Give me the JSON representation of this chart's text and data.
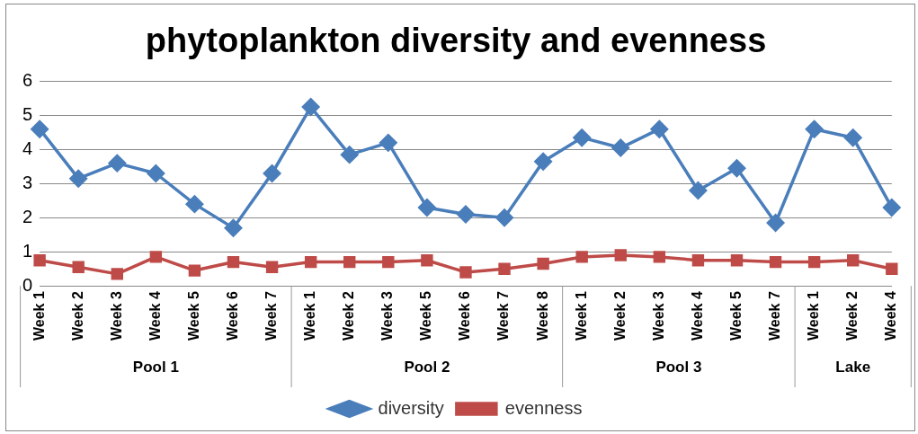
{
  "chart_data": {
    "type": "line",
    "title": "phytoplankton diversity and evenness",
    "categories": [
      "Week 1",
      "Week 2",
      "Week 3",
      "Week 4",
      "Week 5",
      "Week 6",
      "Week 7",
      "Week 1",
      "Week 2",
      "Week 3",
      "Week 5",
      "Week 6",
      "Week 7",
      "Week 8",
      "Week 1",
      "Week 2",
      "Week 3",
      "Week 4",
      "Week 5",
      "Week 7",
      "Week 1",
      "Week 2",
      "Week 4"
    ],
    "annotations": [
      "Pool 1",
      "Pool 2",
      "Pool 3",
      "Lake"
    ],
    "series": [
      {
        "name": "diversity",
        "color": "#4a7ebb",
        "marker": "diamond",
        "values": [
          4.6,
          3.15,
          3.6,
          3.3,
          2.4,
          1.7,
          3.3,
          5.25,
          3.85,
          4.2,
          2.3,
          2.1,
          2.0,
          3.65,
          4.35,
          4.05,
          4.6,
          2.8,
          3.45,
          1.85,
          4.6,
          4.35,
          2.3
        ]
      },
      {
        "name": "evenness",
        "color": "#be4b48",
        "marker": "square",
        "values": [
          0.75,
          0.55,
          0.35,
          0.85,
          0.45,
          0.7,
          0.55,
          0.7,
          0.7,
          0.7,
          0.75,
          0.4,
          0.5,
          0.65,
          0.85,
          0.9,
          0.85,
          0.75,
          0.75,
          0.7,
          0.7,
          0.75,
          0.5
        ]
      }
    ],
    "ylim": [
      0,
      6
    ],
    "yticks": [
      0,
      1,
      2,
      3,
      4,
      5,
      6
    ],
    "grid": "y",
    "legend": "bottom"
  }
}
